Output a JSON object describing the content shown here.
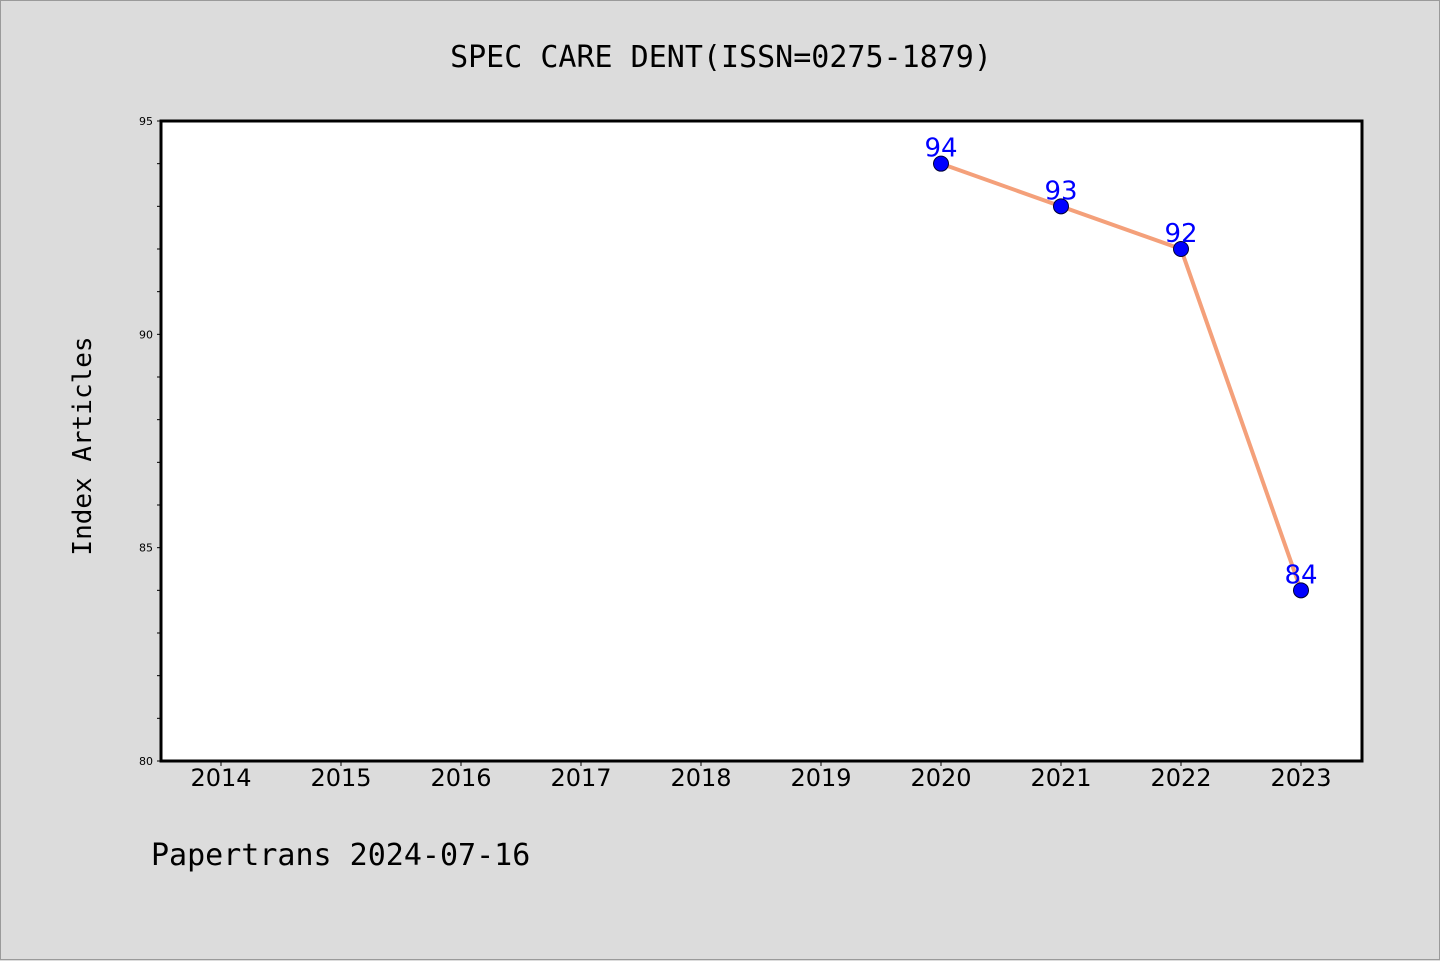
{
  "chart_data": {
    "type": "line",
    "title": "SPEC CARE DENT(ISSN=0275-1879)",
    "xlabel": "",
    "ylabel": "Index Articles",
    "categories": [
      "2014",
      "2015",
      "2016",
      "2017",
      "2018",
      "2019",
      "2020",
      "2021",
      "2022",
      "2023"
    ],
    "series": [
      {
        "x": [
          "2020",
          "2021",
          "2022",
          "2023"
        ],
        "values": [
          94,
          93,
          92,
          84
        ],
        "line_color": "#f4a07a",
        "marker_color": "#0000ff",
        "label_color": "#0000ff"
      }
    ],
    "ylim": [
      80,
      95
    ],
    "yticks": [
      80,
      85,
      90,
      95
    ],
    "yminor_step": 1,
    "grid": false,
    "legend": "none"
  },
  "footer": {
    "text": "Papertrans 2024-07-16"
  },
  "colors": {
    "background": "#dcdcdc",
    "plot_background": "#ffffff",
    "axis": "#000000"
  }
}
